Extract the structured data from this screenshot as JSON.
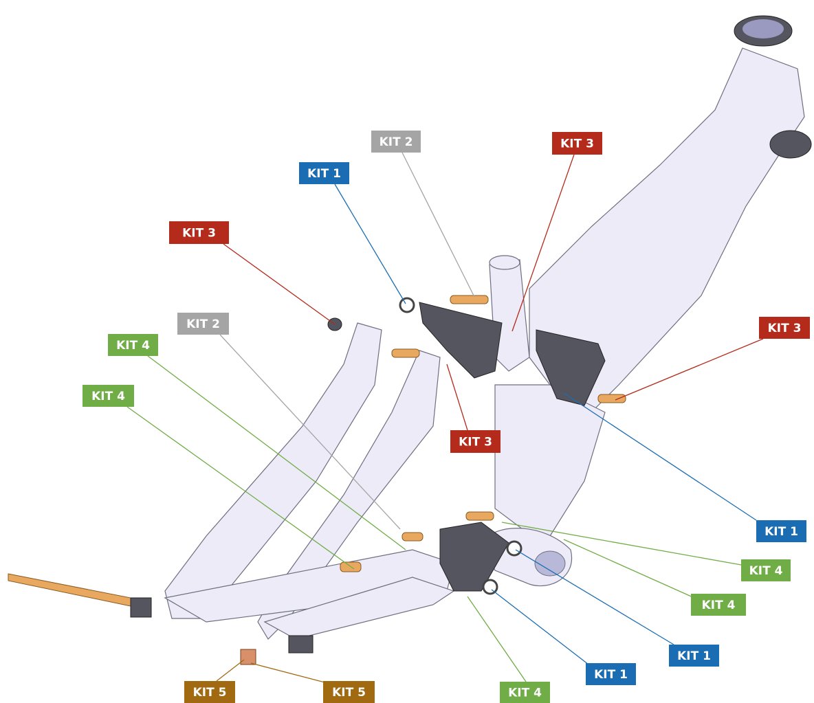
{
  "callouts": [
    {
      "label": "KIT 2",
      "color": "#a5a5a5"
    },
    {
      "label": "KIT 3",
      "color": "#b42a1b"
    },
    {
      "label": "KIT 1",
      "color": "#1b6db3"
    },
    {
      "label": "KIT 3",
      "color": "#b42a1b"
    },
    {
      "label": "KIT 2",
      "color": "#a5a5a5"
    },
    {
      "label": "KIT 3",
      "color": "#b42a1b"
    },
    {
      "label": "KIT 4",
      "color": "#70ad47"
    },
    {
      "label": "KIT 4",
      "color": "#70ad47"
    },
    {
      "label": "KIT 3",
      "color": "#b42a1b"
    },
    {
      "label": "KIT 1",
      "color": "#1b6db3"
    },
    {
      "label": "KIT 4",
      "color": "#70ad47"
    },
    {
      "label": "KIT 4",
      "color": "#70ad47"
    },
    {
      "label": "KIT 1",
      "color": "#1b6db3"
    },
    {
      "label": "KIT 1",
      "color": "#1b6db3"
    },
    {
      "label": "KIT 5",
      "color": "#a26a10"
    },
    {
      "label": "KIT 5",
      "color": "#a26a10"
    },
    {
      "label": "KIT 4",
      "color": "#70ad47"
    }
  ]
}
